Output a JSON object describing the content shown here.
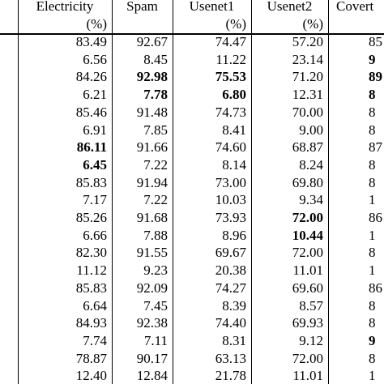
{
  "table": {
    "columns": [
      {
        "name": "Electricity",
        "unit": "(%)"
      },
      {
        "name": "Spam"
      },
      {
        "name": "Usenet1",
        "unit": "(%)"
      },
      {
        "name": "Usenet2",
        "unit": "(%)"
      },
      {
        "name": "Covert"
      }
    ],
    "rows": [
      [
        "83.49",
        "92.67",
        "74.47",
        "57.20",
        "85"
      ],
      [
        "6.56",
        "8.45",
        "11.22",
        "23.14",
        "9"
      ],
      [
        "84.26",
        "92.98",
        "75.53",
        "71.20",
        "89"
      ],
      [
        "6.21",
        "7.78",
        "6.80",
        "12.31",
        "8"
      ],
      [
        "85.46",
        "91.48",
        "74.73",
        "70.00",
        "8"
      ],
      [
        "6.91",
        "7.85",
        "8.41",
        "9.00",
        "8"
      ],
      [
        "86.11",
        "91.66",
        "74.60",
        "68.87",
        "87"
      ],
      [
        "6.45",
        "7.22",
        "8.14",
        "8.24",
        "8"
      ],
      [
        "85.83",
        "91.94",
        "73.00",
        "69.80",
        "8"
      ],
      [
        "7.17",
        "7.22",
        "10.03",
        "9.34",
        "1"
      ],
      [
        "85.26",
        "91.68",
        "73.93",
        "72.00",
        "86"
      ],
      [
        "6.66",
        "7.88",
        "8.96",
        "10.44",
        "1"
      ],
      [
        "82.30",
        "91.55",
        "69.67",
        "72.00",
        "8"
      ],
      [
        "11.12",
        "9.23",
        "20.38",
        "11.01",
        "1"
      ],
      [
        "85.83",
        "92.09",
        "74.27",
        "69.60",
        "86"
      ],
      [
        "6.64",
        "7.45",
        "8.39",
        "8.57",
        "8"
      ],
      [
        "84.93",
        "92.38",
        "74.40",
        "69.93",
        "8"
      ],
      [
        "7.74",
        "7.11",
        "8.31",
        "9.12",
        "9"
      ],
      [
        "78.87",
        "90.17",
        "63.13",
        "72.00",
        "8"
      ],
      [
        "12.40",
        "12.84",
        "21.78",
        "11.01",
        "1"
      ]
    ],
    "bold_cells": [
      [
        1,
        4
      ],
      [
        2,
        1
      ],
      [
        2,
        2
      ],
      [
        2,
        4
      ],
      [
        3,
        1
      ],
      [
        3,
        2
      ],
      [
        3,
        4
      ],
      [
        6,
        0
      ],
      [
        7,
        0
      ],
      [
        10,
        3
      ],
      [
        11,
        3
      ],
      [
        17,
        4
      ]
    ]
  }
}
